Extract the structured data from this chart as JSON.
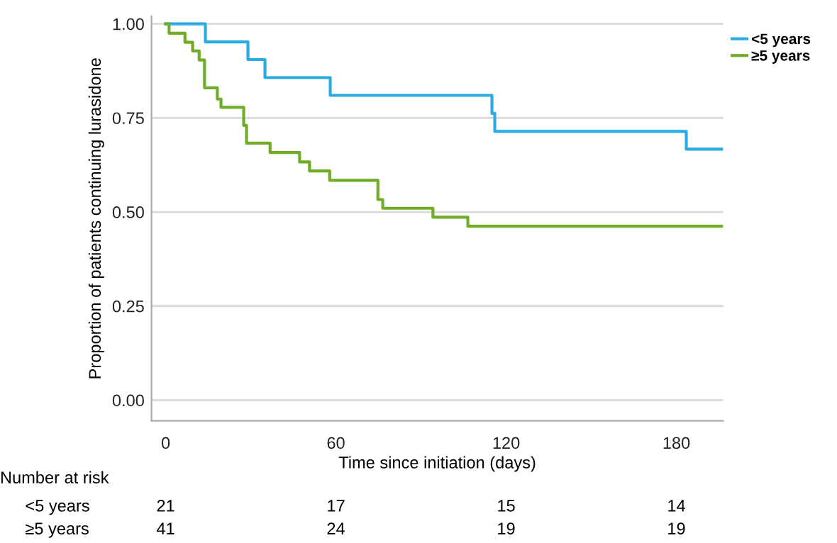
{
  "chart_data": {
    "type": "step",
    "ylabel": "Proportion of patients continuing lurasidone",
    "xlabel": "Time since initiation (days)",
    "series": [
      {
        "name": "<5 years",
        "color": "#29abe2",
        "x": [
          0,
          14,
          29,
          35,
          58,
          115,
          116,
          183.5,
          196
        ],
        "values": [
          1.0,
          0.952,
          0.905,
          0.857,
          0.81,
          0.762,
          0.714,
          0.667,
          0.667
        ]
      },
      {
        "name": "≥5 years",
        "color": "#6fac27",
        "x": [
          0,
          1.2,
          6.8,
          9.5,
          11.8,
          13.7,
          18.2,
          19.5,
          27.5,
          28.5,
          36.8,
          47.2,
          50.7,
          57.8,
          74.8,
          76.5,
          94.2,
          106.5,
          196
        ],
        "values": [
          1.0,
          0.975,
          0.951,
          0.928,
          0.904,
          0.83,
          0.8,
          0.778,
          0.73,
          0.683,
          0.658,
          0.633,
          0.609,
          0.584,
          0.533,
          0.51,
          0.486,
          0.462,
          0.462
        ]
      }
    ],
    "xlim": [
      -5,
      196.5
    ],
    "xticks": [
      0,
      60,
      120,
      180
    ],
    "ylim": [
      -0.055,
      1.02
    ],
    "yticks": [
      {
        "value": 0,
        "label": "0.00"
      },
      {
        "value": 0.25,
        "label": "0.25"
      },
      {
        "value": 0.5,
        "label": "0.50"
      },
      {
        "value": 0.75,
        "label": "0.75"
      },
      {
        "value": 1,
        "label": "1.00"
      }
    ],
    "grid": "y",
    "legend": "top right",
    "line_style": "solid",
    "marker": "none",
    "annotations": [
      "Number at risk",
      "<5 years",
      "21",
      "17",
      "15",
      "14",
      "≥5 years",
      "41",
      "24",
      "19",
      "19"
    ]
  }
}
